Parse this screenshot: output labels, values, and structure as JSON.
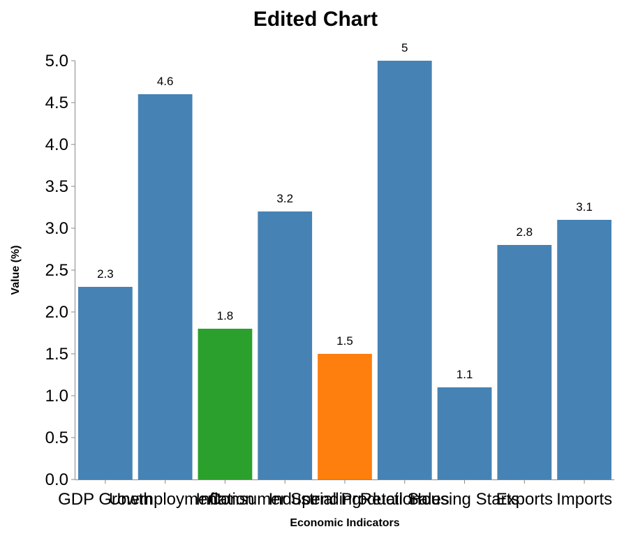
{
  "chart_data": {
    "type": "bar",
    "title": "Edited Chart",
    "xlabel": "Economic Indicators",
    "ylabel": "Value (%)",
    "ylim": [
      0,
      5
    ],
    "yticks": [
      "0.0",
      "0.5",
      "1.0",
      "1.5",
      "2.0",
      "2.5",
      "3.0",
      "3.5",
      "4.0",
      "4.5",
      "5.0"
    ],
    "grid": false,
    "categories": [
      "GDP Growth",
      "Unemployment",
      "Inflation",
      "Consumer Spending",
      "Industrial Production",
      "Retail Sales",
      "Housing Starts",
      "Exports",
      "Imports"
    ],
    "values": [
      2.3,
      4.6,
      1.8,
      3.2,
      1.5,
      5,
      1.1,
      2.8,
      3.1
    ],
    "value_labels": [
      "2.3",
      "4.6",
      "1.8",
      "3.2",
      "1.5",
      "5",
      "1.1",
      "2.8",
      "3.1"
    ],
    "colors": [
      "#4682b4",
      "#4682b4",
      "#2ca02c",
      "#4682b4",
      "#ff7f0e",
      "#4682b4",
      "#4682b4",
      "#4682b4",
      "#4682b4"
    ]
  }
}
